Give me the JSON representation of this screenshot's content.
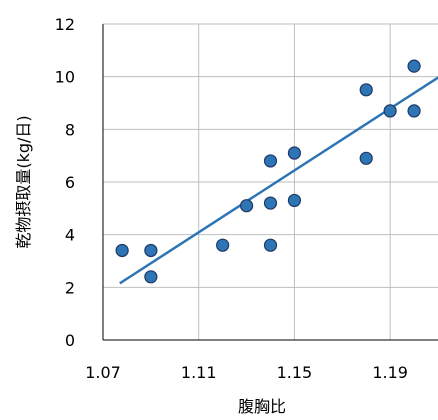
{
  "chart_data": {
    "type": "scatter",
    "title": "",
    "xlabel": "腹胸比",
    "ylabel": "乾物摂取量(kg/日)",
    "xlim": [
      1.07,
      1.21
    ],
    "ylim": [
      0,
      12
    ],
    "x_ticks": [
      "1.07",
      "1.11",
      "1.15",
      "1.19"
    ],
    "x_tick_values": [
      1.07,
      1.11,
      1.15,
      1.19
    ],
    "y_ticks": [
      "0",
      "2",
      "4",
      "6",
      "8",
      "10",
      "12"
    ],
    "y_tick_values": [
      0,
      2,
      4,
      6,
      8,
      10,
      12
    ],
    "grid": true,
    "legend": "none",
    "marker_color": "#2e75b6",
    "marker_edge_color": "#1f3864",
    "trendline_color": "#2e75b6",
    "points": [
      {
        "x": 1.078,
        "y": 3.4
      },
      {
        "x": 1.09,
        "y": 3.4
      },
      {
        "x": 1.09,
        "y": 2.4
      },
      {
        "x": 1.12,
        "y": 3.6
      },
      {
        "x": 1.13,
        "y": 5.1
      },
      {
        "x": 1.14,
        "y": 6.8
      },
      {
        "x": 1.14,
        "y": 5.2
      },
      {
        "x": 1.14,
        "y": 3.6
      },
      {
        "x": 1.15,
        "y": 7.1
      },
      {
        "x": 1.15,
        "y": 5.3
      },
      {
        "x": 1.18,
        "y": 9.5
      },
      {
        "x": 1.18,
        "y": 6.9
      },
      {
        "x": 1.19,
        "y": 8.7
      },
      {
        "x": 1.2,
        "y": 10.4
      },
      {
        "x": 1.2,
        "y": 8.7
      }
    ],
    "trendline": {
      "x": [
        1.077,
        1.214
      ],
      "y": [
        2.15,
        10.2
      ]
    }
  }
}
